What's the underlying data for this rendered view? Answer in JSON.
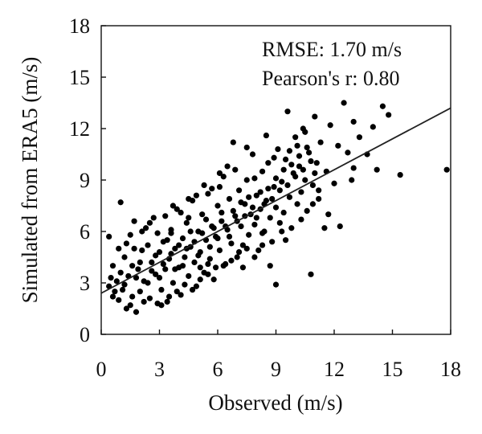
{
  "chart_data": {
    "type": "scatter",
    "xlabel": "Observed (m/s)",
    "ylabel": "Simulated from ERA5 (m/s)",
    "xlim": [
      0,
      18
    ],
    "ylim": [
      0,
      18
    ],
    "xticks": [
      "0",
      "3",
      "6",
      "9",
      "12",
      "15",
      "18"
    ],
    "yticks": [
      "0",
      "3",
      "6",
      "9",
      "12",
      "15",
      "18"
    ],
    "grid": false,
    "legend": "none",
    "marker_color": "#000000",
    "line_color": "#222222",
    "annotations": [
      "RMSE: 1.70 m/s",
      "Pearson's r: 0.80"
    ],
    "regression_line": {
      "x": [
        0,
        18
      ],
      "y": [
        2.4,
        13.2
      ]
    },
    "series": [
      {
        "points": [
          [
            0.4,
            2.8
          ],
          [
            0.5,
            3.3
          ],
          [
            0.6,
            2.2
          ],
          [
            0.4,
            5.7
          ],
          [
            0.7,
            2.5
          ],
          [
            0.8,
            3.1
          ],
          [
            0.9,
            2.0
          ],
          [
            1.0,
            7.7
          ],
          [
            1.1,
            2.6
          ],
          [
            1.2,
            4.5
          ],
          [
            1.3,
            1.5
          ],
          [
            1.4,
            3.4
          ],
          [
            1.5,
            5.8
          ],
          [
            1.5,
            1.7
          ],
          [
            1.6,
            2.2
          ],
          [
            1.7,
            6.6
          ],
          [
            1.8,
            1.3
          ],
          [
            1.9,
            3.8
          ],
          [
            2.0,
            2.5
          ],
          [
            2.1,
            4.9
          ],
          [
            2.2,
            1.9
          ],
          [
            2.3,
            6.2
          ],
          [
            2.4,
            3.0
          ],
          [
            2.5,
            2.1
          ],
          [
            2.6,
            4.2
          ],
          [
            2.7,
            6.8
          ],
          [
            2.8,
            3.5
          ],
          [
            2.9,
            1.8
          ],
          [
            3.0,
            4.8
          ],
          [
            3.1,
            2.6
          ],
          [
            3.2,
            5.4
          ],
          [
            3.3,
            3.8
          ],
          [
            3.4,
            1.9
          ],
          [
            3.5,
            4.4
          ],
          [
            3.6,
            6.1
          ],
          [
            3.7,
            3.0
          ],
          [
            3.8,
            5.0
          ],
          [
            3.9,
            7.3
          ],
          [
            4.0,
            3.9
          ],
          [
            4.1,
            2.3
          ],
          [
            4.2,
            5.6
          ],
          [
            4.3,
            4.5
          ],
          [
            4.4,
            6.5
          ],
          [
            4.5,
            3.4
          ],
          [
            4.6,
            5.1
          ],
          [
            4.7,
            7.8
          ],
          [
            4.8,
            4.2
          ],
          [
            4.9,
            2.8
          ],
          [
            5.0,
            6.0
          ],
          [
            5.1,
            4.8
          ],
          [
            5.2,
            7.0
          ],
          [
            5.3,
            3.6
          ],
          [
            5.4,
            5.5
          ],
          [
            5.5,
            8.2
          ],
          [
            5.6,
            4.4
          ],
          [
            5.7,
            6.3
          ],
          [
            5.8,
            3.2
          ],
          [
            5.9,
            5.7
          ],
          [
            6.0,
            7.5
          ],
          [
            6.1,
            4.9
          ],
          [
            6.2,
            6.6
          ],
          [
            6.3,
            9.2
          ],
          [
            6.4,
            4.1
          ],
          [
            6.5,
            6.1
          ],
          [
            6.6,
            7.9
          ],
          [
            6.7,
            5.3
          ],
          [
            6.8,
            11.2
          ],
          [
            6.9,
            6.9
          ],
          [
            7.0,
            4.5
          ],
          [
            7.1,
            8.4
          ],
          [
            7.2,
            6.3
          ],
          [
            7.3,
            5.2
          ],
          [
            7.4,
            7.6
          ],
          [
            7.5,
            9.0
          ],
          [
            7.6,
            5.8
          ],
          [
            7.7,
            7.0
          ],
          [
            7.8,
            10.5
          ],
          [
            7.9,
            6.4
          ],
          [
            8.0,
            8.1
          ],
          [
            8.1,
            4.9
          ],
          [
            8.2,
            7.3
          ],
          [
            8.3,
            9.5
          ],
          [
            8.4,
            6.0
          ],
          [
            8.5,
            7.8
          ],
          [
            8.6,
            10.0
          ],
          [
            8.7,
            6.8
          ],
          [
            8.8,
            5.4
          ],
          [
            8.9,
            8.6
          ],
          [
            9.0,
            2.9
          ],
          [
            9.0,
            7.4
          ],
          [
            9.1,
            10.8
          ],
          [
            9.2,
            6.5
          ],
          [
            9.3,
            8.9
          ],
          [
            9.4,
            7.1
          ],
          [
            9.5,
            10.2
          ],
          [
            9.6,
            13.0
          ],
          [
            9.7,
            8.0
          ],
          [
            9.8,
            6.2
          ],
          [
            9.9,
            9.4
          ],
          [
            10.0,
            11.5
          ],
          [
            10.1,
            7.6
          ],
          [
            10.2,
            9.8
          ],
          [
            10.3,
            8.3
          ],
          [
            10.4,
            12.0
          ],
          [
            10.5,
            9.0
          ],
          [
            10.6,
            7.2
          ],
          [
            10.7,
            10.6
          ],
          [
            10.8,
            3.5
          ],
          [
            10.9,
            8.7
          ],
          [
            11.0,
            12.7
          ],
          [
            11.1,
            10.0
          ],
          [
            11.2,
            7.9
          ],
          [
            11.3,
            11.2
          ],
          [
            11.5,
            6.2
          ],
          [
            11.6,
            9.5
          ],
          [
            11.8,
            12.2
          ],
          [
            12.0,
            8.8
          ],
          [
            12.2,
            11.0
          ],
          [
            12.5,
            13.5
          ],
          [
            12.7,
            10.6
          ],
          [
            12.9,
            9.0
          ],
          [
            13.0,
            12.4
          ],
          [
            13.3,
            11.5
          ],
          [
            13.7,
            10.5
          ],
          [
            14.0,
            12.1
          ],
          [
            14.2,
            9.6
          ],
          [
            14.5,
            13.3
          ],
          [
            14.8,
            12.8
          ],
          [
            15.4,
            9.3
          ],
          [
            17.8,
            9.6
          ],
          [
            1.0,
            3.6
          ],
          [
            1.2,
            2.9
          ],
          [
            1.6,
            4.0
          ],
          [
            1.8,
            3.3
          ],
          [
            2.0,
            4.2
          ],
          [
            2.2,
            3.1
          ],
          [
            2.4,
            5.2
          ],
          [
            2.6,
            3.7
          ],
          [
            2.8,
            4.6
          ],
          [
            3.0,
            3.3
          ],
          [
            3.2,
            4.1
          ],
          [
            3.4,
            5.5
          ],
          [
            3.6,
            4.7
          ],
          [
            3.8,
            3.8
          ],
          [
            4.0,
            5.2
          ],
          [
            4.2,
            4.0
          ],
          [
            4.4,
            5.0
          ],
          [
            4.6,
            6.0
          ],
          [
            4.8,
            5.4
          ],
          [
            5.0,
            4.6
          ],
          [
            5.2,
            5.9
          ],
          [
            5.4,
            6.7
          ],
          [
            5.6,
            5.1
          ],
          [
            5.8,
            6.2
          ],
          [
            6.0,
            5.6
          ],
          [
            6.2,
            7.1
          ],
          [
            6.4,
            6.3
          ],
          [
            6.6,
            5.7
          ],
          [
            6.8,
            7.2
          ],
          [
            7.0,
            6.6
          ],
          [
            7.2,
            7.7
          ],
          [
            7.4,
            6.9
          ],
          [
            7.6,
            8.0
          ],
          [
            7.8,
            7.4
          ],
          [
            8.0,
            6.8
          ],
          [
            8.2,
            8.3
          ],
          [
            8.4,
            7.6
          ],
          [
            8.6,
            8.5
          ],
          [
            8.8,
            7.9
          ],
          [
            9.0,
            9.1
          ],
          [
            9.2,
            8.4
          ],
          [
            9.4,
            9.6
          ],
          [
            9.6,
            8.7
          ],
          [
            9.8,
            9.9
          ],
          [
            10.0,
            9.2
          ],
          [
            10.2,
            10.4
          ],
          [
            10.4,
            9.6
          ],
          [
            10.6,
            10.9
          ],
          [
            10.8,
            10.1
          ],
          [
            11.0,
            9.4
          ],
          [
            3.6,
            5.9
          ],
          [
            4.5,
            6.8
          ],
          [
            5.1,
            3.9
          ],
          [
            5.5,
            4.1
          ],
          [
            6.1,
            8.6
          ],
          [
            6.9,
            9.6
          ],
          [
            7.3,
            3.9
          ],
          [
            7.9,
            9.1
          ],
          [
            8.3,
            5.9
          ],
          [
            8.9,
            10.3
          ],
          [
            9.3,
            6.0
          ],
          [
            9.7,
            10.7
          ],
          [
            10.1,
            11.0
          ],
          [
            10.5,
            11.8
          ],
          [
            11.2,
            8.4
          ],
          [
            11.7,
            7.0
          ],
          [
            12.3,
            6.3
          ],
          [
            13.0,
            9.7
          ],
          [
            0.6,
            4.0
          ],
          [
            0.9,
            5.0
          ],
          [
            1.3,
            5.3
          ],
          [
            1.7,
            5.0
          ],
          [
            2.1,
            6.0
          ],
          [
            2.5,
            6.5
          ],
          [
            2.9,
            5.9
          ],
          [
            3.3,
            6.9
          ],
          [
            3.7,
            7.5
          ],
          [
            4.1,
            7.1
          ],
          [
            4.5,
            7.9
          ],
          [
            4.9,
            8.1
          ],
          [
            5.3,
            8.7
          ],
          [
            5.7,
            8.5
          ],
          [
            6.1,
            9.4
          ],
          [
            6.5,
            9.8
          ],
          [
            7.5,
            10.9
          ],
          [
            8.5,
            11.6
          ],
          [
            3.1,
            1.7
          ],
          [
            3.5,
            2.2
          ],
          [
            3.9,
            2.5
          ],
          [
            4.3,
            2.9
          ],
          [
            4.7,
            2.6
          ],
          [
            5.1,
            3.2
          ],
          [
            5.5,
            3.5
          ],
          [
            5.9,
            3.9
          ],
          [
            6.3,
            4.0
          ],
          [
            6.7,
            4.3
          ],
          [
            7.1,
            4.8
          ],
          [
            7.5,
            5.0
          ],
          [
            7.9,
            4.5
          ],
          [
            8.3,
            5.2
          ],
          [
            8.7,
            4.0
          ],
          [
            9.5,
            5.5
          ],
          [
            10.3,
            6.7
          ],
          [
            10.9,
            7.6
          ]
        ]
      }
    ]
  }
}
